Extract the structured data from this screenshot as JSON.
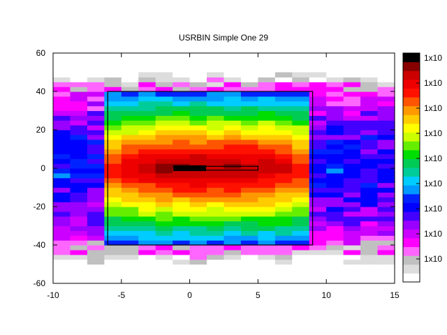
{
  "chart_data": {
    "type": "heatmap",
    "title": "USRBIN Simple One 29",
    "xlabel": "",
    "ylabel": "",
    "xlim": [
      -10,
      15
    ],
    "ylim": [
      -60,
      60
    ],
    "x_ticks": [
      "-10",
      "-5",
      "0",
      "5",
      "10",
      "15"
    ],
    "x_tick_values": [
      -10,
      -5,
      0,
      5,
      10,
      15
    ],
    "y_ticks": [
      "60",
      "40",
      "20",
      "0",
      "-20",
      "-40",
      "-60"
    ],
    "y_tick_values": [
      60,
      40,
      20,
      0,
      -20,
      -40,
      -60
    ],
    "grid": false,
    "data_extent": {
      "x": [
        -10,
        15
      ],
      "y": [
        -50,
        50
      ]
    },
    "bins": {
      "nx": 20,
      "ny": 40
    },
    "colorbar": {
      "position": "right",
      "tick_labels": [
        "1x10",
        "1x10",
        "1x10",
        "1x10",
        "1x10",
        "1x10",
        "1x10",
        "1x10",
        "1x10"
      ],
      "colors": [
        "#ffffff",
        "#dddddd",
        "#c0c0c0",
        "#ff66ff",
        "#ff00ff",
        "#cc00ff",
        "#9900ff",
        "#4400ff",
        "#0000ff",
        "#0022ff",
        "#0099ff",
        "#00ccff",
        "#00cc99",
        "#00cc55",
        "#00dd00",
        "#66ee00",
        "#ccff00",
        "#ffff00",
        "#ffcc00",
        "#ff9900",
        "#ff5500",
        "#ff1100",
        "#ee0000",
        "#cc0000",
        "#880000",
        "#000000"
      ]
    },
    "regions": [
      {
        "name": "outer-box",
        "x": [
          -6,
          9
        ],
        "y": [
          -40,
          40
        ]
      },
      {
        "name": "inner-box",
        "x": [
          -1,
          5
        ],
        "y": [
          -1,
          1
        ]
      }
    ],
    "core": {
      "x": [
        -1.2,
        1.2
      ],
      "y": [
        -1.5,
        1.5
      ]
    }
  }
}
